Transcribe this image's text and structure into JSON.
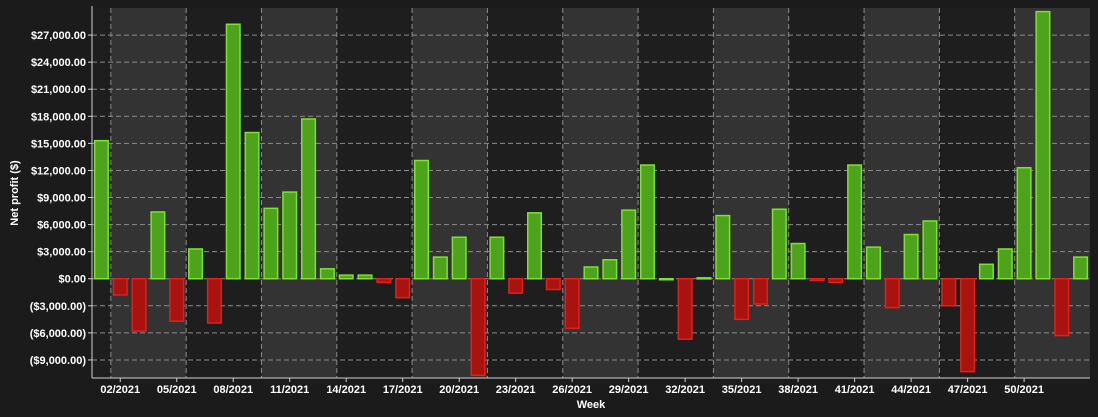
{
  "chart_data": {
    "type": "bar",
    "xlabel": "Week",
    "ylabel": "Net profit ($)",
    "ylim": [
      -11000,
      30000
    ],
    "grid": true,
    "yticks": [
      27000,
      24000,
      21000,
      18000,
      15000,
      12000,
      9000,
      6000,
      3000,
      0,
      -3000,
      -6000,
      -9000
    ],
    "ytick_labels": [
      "$27,000.00",
      "$24,000.00",
      "$21,000.00",
      "$18,000.00",
      "$15,000.00",
      "$12,000.00",
      "$9,000.00",
      "$6,000.00",
      "$3,000.00",
      "$0.00",
      "($3,000.00)",
      "($6,000.00)",
      "($9,000.00)"
    ],
    "xtick_labels": [
      "02/2021",
      "05/2021",
      "08/2021",
      "11/2021",
      "14/2021",
      "17/2021",
      "20/2021",
      "23/2021",
      "26/2021",
      "29/2021",
      "32/2021",
      "35/2021",
      "38/2021",
      "41/2021",
      "44/2021",
      "47/2021",
      "50/2021"
    ],
    "categories": [
      "01/2021",
      "02/2021",
      "03/2021",
      "04/2021",
      "05/2021",
      "06/2021",
      "07/2021",
      "08/2021",
      "09/2021",
      "10/2021",
      "11/2021",
      "12/2021",
      "13/2021",
      "14/2021",
      "15/2021",
      "16/2021",
      "17/2021",
      "18/2021",
      "19/2021",
      "20/2021",
      "21/2021",
      "22/2021",
      "23/2021",
      "24/2021",
      "25/2021",
      "26/2021",
      "27/2021",
      "28/2021",
      "29/2021",
      "30/2021",
      "31/2021",
      "32/2021",
      "33/2021",
      "34/2021",
      "35/2021",
      "36/2021",
      "37/2021",
      "38/2021",
      "39/2021",
      "40/2021",
      "41/2021",
      "42/2021",
      "43/2021",
      "44/2021",
      "45/2021",
      "46/2021",
      "47/2021",
      "48/2021",
      "49/2021",
      "50/2021",
      "51/2021",
      "52/2021",
      "53/2021"
    ],
    "values": [
      15300,
      -1800,
      -5800,
      7400,
      -4700,
      3300,
      -4900,
      28200,
      16200,
      7800,
      9600,
      17700,
      1100,
      400,
      400,
      -400,
      -2100,
      13100,
      2400,
      4600,
      -10700,
      4600,
      -1600,
      7300,
      -1200,
      -5500,
      1300,
      2100,
      7600,
      12600,
      0,
      -6700,
      100,
      7000,
      -4500,
      -2800,
      7700,
      3900,
      -200,
      -400,
      12600,
      3500,
      -3200,
      4900,
      6400,
      -3000,
      -10300,
      1600,
      3300,
      12300,
      29600,
      -6300,
      2400
    ],
    "colors": {
      "positive_fill": "#4ea31c",
      "positive_edge": "#7ee030",
      "negative_fill": "#a8120f",
      "negative_edge": "#e0201a",
      "background": "#1b1b1b",
      "band_light": "#333333",
      "band_dark": "#1e1e1e"
    }
  }
}
